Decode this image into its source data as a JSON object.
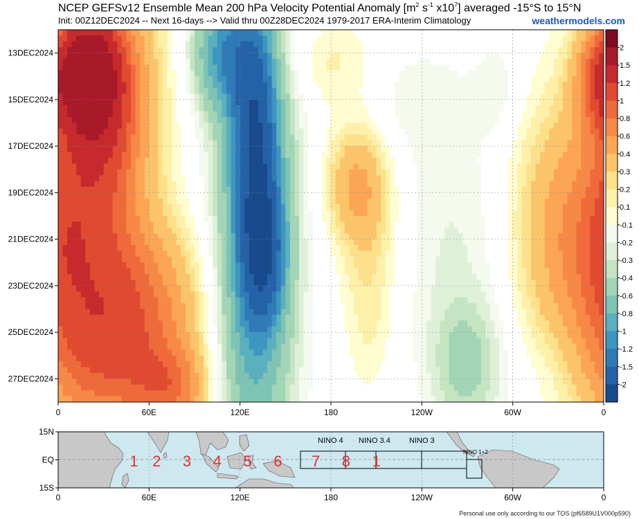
{
  "header": {
    "title_main": "NCEP GEFSv12 Ensemble Mean 200 hPa Velocity Potential Anomaly [m",
    "title_sup1": "2",
    "title_mid1": " s",
    "title_sup2": "-1",
    "title_mid2": " x10",
    "title_sup3": "7",
    "title_end": "] averaged -15°S to 15°N",
    "subtitle": "Init: 00Z12DEC2024 -- Next 16-days --> Valid thru 00Z28DEC2024 1979-2017 ERA-Interim Climatology",
    "brand": "weathermodels.com"
  },
  "footer": "Personal use only according to our TOS (pf6589U1V000p590)",
  "colors": {
    "positive": [
      "#fffcd0",
      "#fdf0a8",
      "#fde08a",
      "#fcc46a",
      "#fba555",
      "#f78946",
      "#ef6a3a",
      "#e04a30",
      "#c72a2c",
      "#a81a2a",
      "#7e0a22"
    ],
    "negative": [
      "#f4faee",
      "#dff0d8",
      "#c4e4c2",
      "#a2d5b6",
      "#7ec3b4",
      "#5ab0bd",
      "#3d96c0",
      "#2f7bb8",
      "#2462a8",
      "#1a4a8e"
    ],
    "ocean": "#cde8ef",
    "land": "#c8c8c8",
    "phase_number": "#e03030"
  },
  "chart_data": {
    "type": "heatmap",
    "x_tick_labels": [
      "0",
      "60E",
      "120E",
      "180",
      "120W",
      "60W",
      "0"
    ],
    "x_tick_lon": [
      0,
      60,
      120,
      180,
      240,
      300,
      360
    ],
    "y_tick_labels": [
      "13DEC2024",
      "15DEC2024",
      "17DEC2024",
      "19DEC2024",
      "21DEC2024",
      "23DEC2024",
      "25DEC2024",
      "27DEC2024"
    ],
    "day_range": [
      12,
      28
    ],
    "lon_range": [
      0,
      360
    ],
    "grid": true,
    "colorbar_labels": [
      "2",
      "1.5",
      "1.2",
      "1",
      "0.8",
      "0.6",
      "0.4",
      "0.3",
      "0.2",
      "0.1",
      "-0.1",
      "-0.2",
      "-0.3",
      "-0.4",
      "-0.6",
      "-0.8",
      "-1",
      "-1.2",
      "-1.5",
      "-2"
    ],
    "features": [
      {
        "lon": 20,
        "day": 14.0,
        "lw": 18,
        "dw": 2.2,
        "v": 1.8
      },
      {
        "lon": 25,
        "day": 15.5,
        "lw": 30,
        "dw": 5.0,
        "v": 1.0
      },
      {
        "lon": 30,
        "day": 14.0,
        "lw": 40,
        "dw": 6.0,
        "v": 0.55
      },
      {
        "lon": 15,
        "day": 19.0,
        "lw": 35,
        "dw": 4.0,
        "v": 0.15
      },
      {
        "lon": 40,
        "day": 25.5,
        "lw": 60,
        "dw": 4.0,
        "v": 0.85
      },
      {
        "lon": 75,
        "day": 27.5,
        "lw": 25,
        "dw": 1.8,
        "v": 0.6
      },
      {
        "lon": 20,
        "day": 24.5,
        "lw": 45,
        "dw": 6.0,
        "v": 0.5
      },
      {
        "lon": 50,
        "day": 22.5,
        "lw": 50,
        "dw": 3.0,
        "v": 0.25
      },
      {
        "lon": 3,
        "day": 21.0,
        "lw": 20,
        "dw": 3.0,
        "v": 0.4
      },
      {
        "lon": 130,
        "day": 16.5,
        "lw": 14,
        "dw": 4.5,
        "v": -1.3
      },
      {
        "lon": 135,
        "day": 21.5,
        "lw": 14,
        "dw": 3.0,
        "v": -1.3
      },
      {
        "lon": 130,
        "day": 20.0,
        "lw": 28,
        "dw": 10.0,
        "v": -0.8
      },
      {
        "lon": 110,
        "day": 13.0,
        "lw": 22,
        "dw": 2.5,
        "v": -0.9
      },
      {
        "lon": 125,
        "day": 26.0,
        "lw": 25,
        "dw": 5.0,
        "v": -0.4
      },
      {
        "lon": 195,
        "day": 18.5,
        "lw": 20,
        "dw": 2.5,
        "v": 0.5
      },
      {
        "lon": 205,
        "day": 20.5,
        "lw": 20,
        "dw": 4.0,
        "v": 0.3
      },
      {
        "lon": 180,
        "day": 13.5,
        "lw": 30,
        "dw": 2.0,
        "v": 0.25
      },
      {
        "lon": 230,
        "day": 15.0,
        "lw": 45,
        "dw": 2.5,
        "v": -0.15
      },
      {
        "lon": 205,
        "day": 25.0,
        "lw": 15,
        "dw": 3.0,
        "v": 0.15
      },
      {
        "lon": 330,
        "day": 20.0,
        "lw": 30,
        "dw": 5.0,
        "v": 0.55
      },
      {
        "lon": 355,
        "day": 14.0,
        "lw": 15,
        "dw": 2.0,
        "v": 0.6
      },
      {
        "lon": 270,
        "day": 26.5,
        "lw": 25,
        "dw": 3.0,
        "v": -0.45
      },
      {
        "lon": 260,
        "day": 21.0,
        "lw": 35,
        "dw": 5.0,
        "v": -0.2
      },
      {
        "lon": 330,
        "day": 26.5,
        "lw": 25,
        "dw": 2.5,
        "v": -0.15
      },
      {
        "lon": 290,
        "day": 14.5,
        "lw": 15,
        "dw": 2.0,
        "v": -0.15
      }
    ]
  },
  "map": {
    "lat_labels": [
      "15N",
      "EQ",
      "15S"
    ],
    "lon_labels": [
      "0",
      "60E",
      "120E",
      "180",
      "120W",
      "60W",
      "0"
    ],
    "nino_labels": [
      "NINO 4",
      "NINO 3.4",
      "NINO 3",
      "NINO 1+2"
    ],
    "phases": [
      "1",
      "2",
      "3",
      "4",
      "5",
      "6",
      "7",
      "8",
      "1"
    ]
  }
}
